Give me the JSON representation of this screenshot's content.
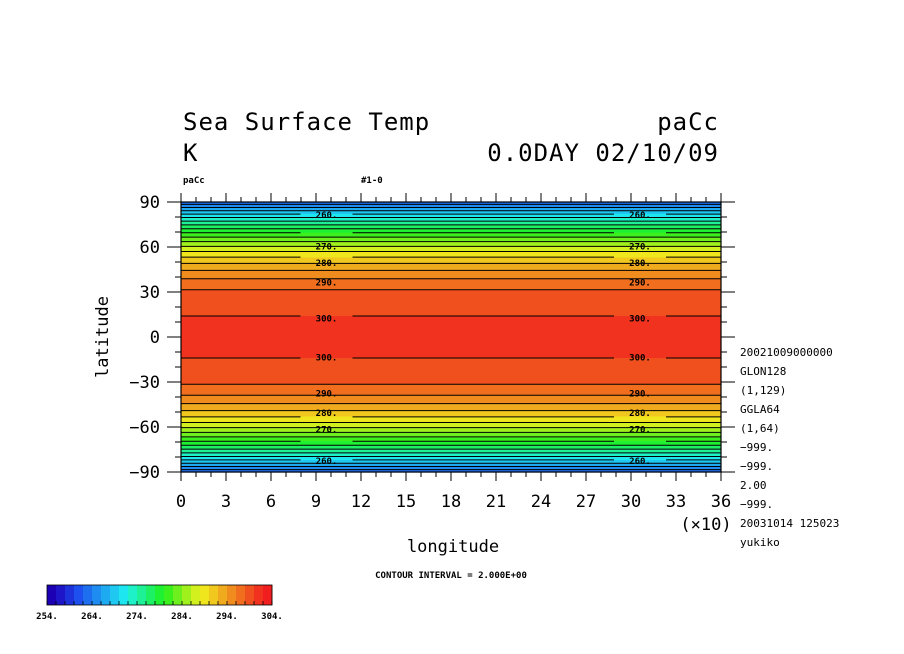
{
  "header": {
    "title": "Sea Surface Temp",
    "run_right": "paCc",
    "unit": "K",
    "time": "0.0DAY 02/10/09",
    "small_left": "paCc",
    "small_mid": "#1-0"
  },
  "chart_data": {
    "type": "heatmap",
    "xlabel": "longitude",
    "ylabel": "latitude",
    "xlim": [
      0,
      36
    ],
    "ylim": [
      -90,
      90
    ],
    "x_ticks": [
      "0",
      "3",
      "6",
      "9",
      "12",
      "15",
      "18",
      "21",
      "24",
      "27",
      "30",
      "33",
      "36"
    ],
    "x_multiplier": "(×10)",
    "y_ticks": [
      "90",
      "60",
      "30",
      "0",
      "−30",
      "−60",
      "−90"
    ],
    "contour_interval_text": "CONTOUR INTERVAL = 2.000E+00",
    "contour_labels": [
      {
        "lat": 82,
        "text": "260."
      },
      {
        "lat": 61,
        "text": "270."
      },
      {
        "lat": 50,
        "text": "280."
      },
      {
        "lat": 37,
        "text": "290."
      },
      {
        "lat": 13,
        "text": "300."
      },
      {
        "lat": -13,
        "text": "300."
      },
      {
        "lat": -37,
        "text": "290."
      },
      {
        "lat": -50,
        "text": "280."
      },
      {
        "lat": -61,
        "text": "270."
      },
      {
        "lat": -82,
        "text": "260."
      }
    ],
    "contour_label_lon": [
      9.7,
      30.6
    ],
    "color_levels": [
      254,
      256,
      258,
      260,
      262,
      264,
      266,
      268,
      270,
      272,
      274,
      276,
      278,
      280,
      282,
      284,
      286,
      288,
      290,
      292,
      294,
      296,
      298,
      300,
      302,
      304
    ],
    "colors": [
      "#1c00b4",
      "#1e14c8",
      "#1e32dc",
      "#1e50f0",
      "#1e6ef0",
      "#1e8cf0",
      "#1eaaf0",
      "#1ec8f0",
      "#1ee6f0",
      "#1ef0c8",
      "#1ef096",
      "#1ef064",
      "#1ef032",
      "#3cf01e",
      "#6ef01e",
      "#a0f01e",
      "#d2f01e",
      "#f0e61e",
      "#f0c81e",
      "#f0aa1e",
      "#f08c1e",
      "#f06e1e",
      "#f0501e",
      "#f0321e",
      "#f01e1e"
    ],
    "colorbar_labels": [
      "254.",
      "264.",
      "274.",
      "284.",
      "294.",
      "304."
    ]
  },
  "info_lines": [
    "20021009000000",
    "GLON128",
    "(1,129)",
    "GGLA64",
    "(1,64)",
    "−999.",
    "−999.",
    "2.00",
    "−999.",
    "20031014 125023",
    "yukiko"
  ]
}
